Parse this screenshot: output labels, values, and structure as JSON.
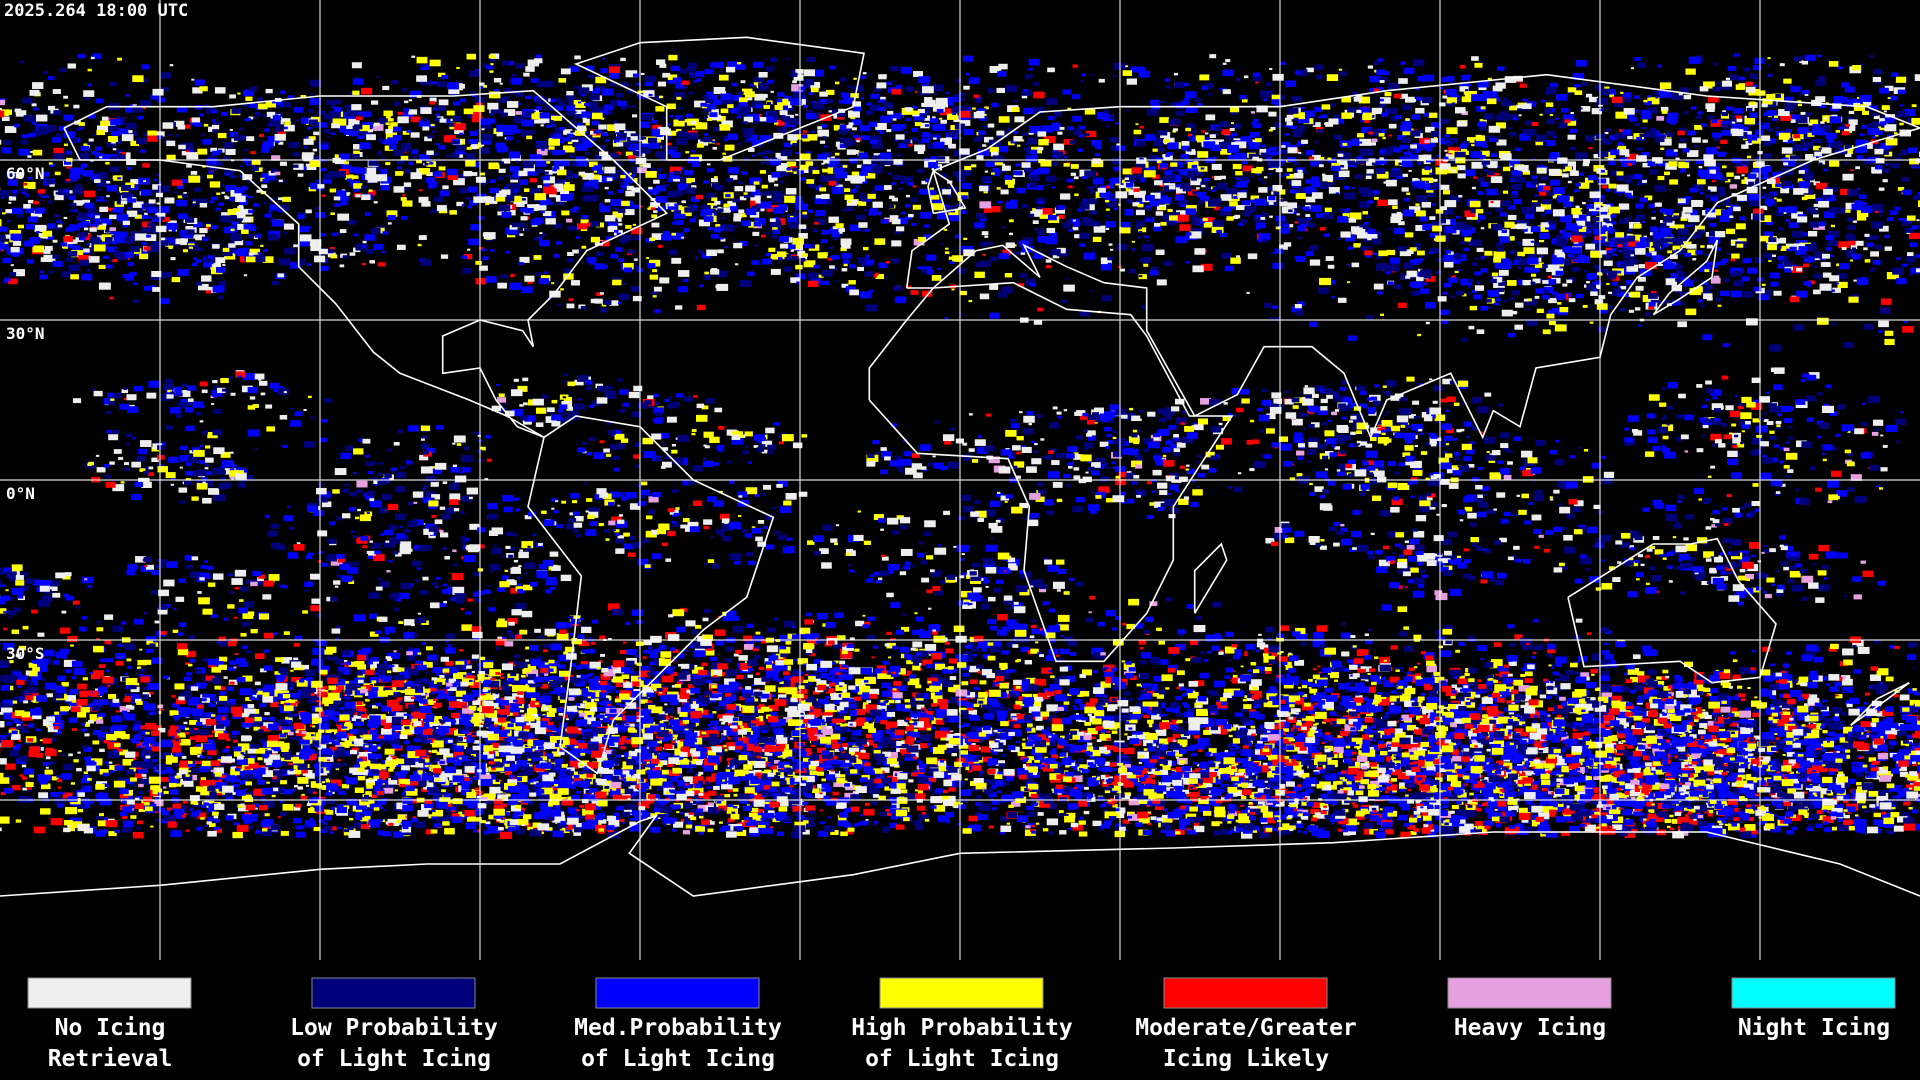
{
  "timestamp": "2025.264 18:00 UTC",
  "latitude_labels": [
    "60°N",
    "30°N",
    "0°N",
    "30°S"
  ],
  "legend": [
    {
      "lines": [
        "No Icing",
        "Retrieval"
      ],
      "color": "#eeeeee"
    },
    {
      "lines": [
        "Low Probability",
        "of Light Icing"
      ],
      "color": "#00007a"
    },
    {
      "lines": [
        "Med.Probability",
        "of Light Icing"
      ],
      "color": "#0000ff"
    },
    {
      "lines": [
        "High Probability",
        "of Light Icing"
      ],
      "color": "#ffff00"
    },
    {
      "lines": [
        "Moderate/Greater",
        "Icing Likely"
      ],
      "color": "#ff0000"
    },
    {
      "lines": [
        "Heavy Icing"
      ],
      "color": "#e6a0e0"
    },
    {
      "lines": [
        "Night Icing"
      ],
      "color": "#00ffff"
    }
  ]
}
